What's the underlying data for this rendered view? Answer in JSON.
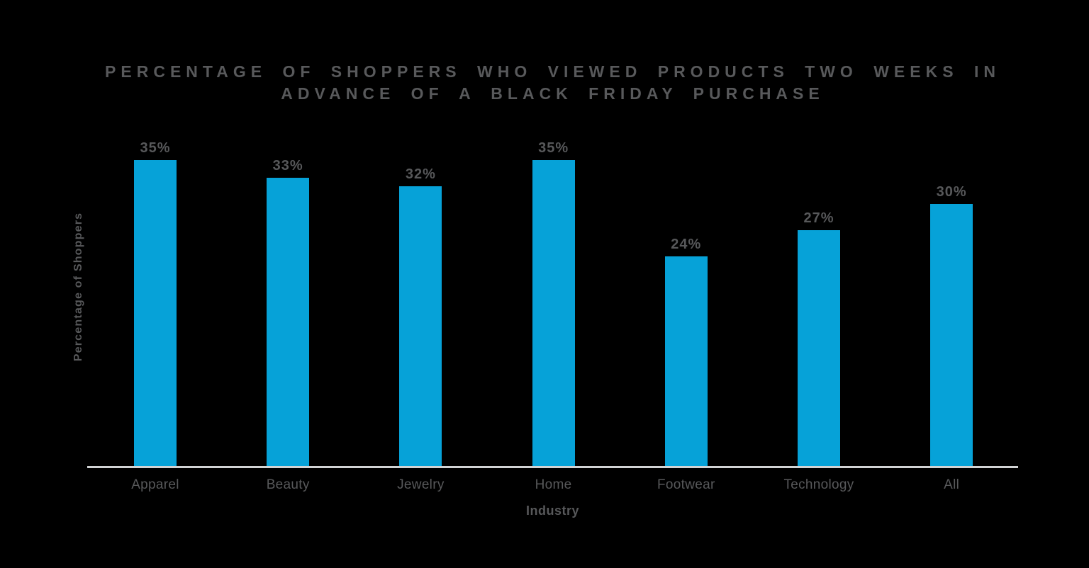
{
  "header": {
    "title_line1": "PERCENTAGE OF SHOPPERS WHO VIEWED PRODUCTS TWO WEEKS IN",
    "title_line2": "ADVANCE OF A BLACK FRIDAY PURCHASE"
  },
  "chart_data": {
    "type": "bar",
    "title": "PERCENTAGE OF SHOPPERS WHO VIEWED PRODUCTS TWO WEEKS IN ADVANCE OF A BLACK FRIDAY PURCHASE",
    "categories": [
      "Apparel",
      "Beauty",
      "Jewelry",
      "Home",
      "Footwear",
      "Technology",
      "All"
    ],
    "values": [
      35,
      33,
      32,
      35,
      24,
      27,
      30
    ],
    "value_labels": [
      "35%",
      "33%",
      "32%",
      "35%",
      "24%",
      "27%",
      "30%"
    ],
    "xlabel": "Industry",
    "ylabel": "Percentage of Shoppers",
    "ylim": [
      0,
      40
    ],
    "grid": false,
    "legend_position": "none",
    "colors": {
      "bar": "#06a2d8",
      "text": "#58595b",
      "axis_line": "#d1d3d4",
      "background": "#000000"
    }
  }
}
